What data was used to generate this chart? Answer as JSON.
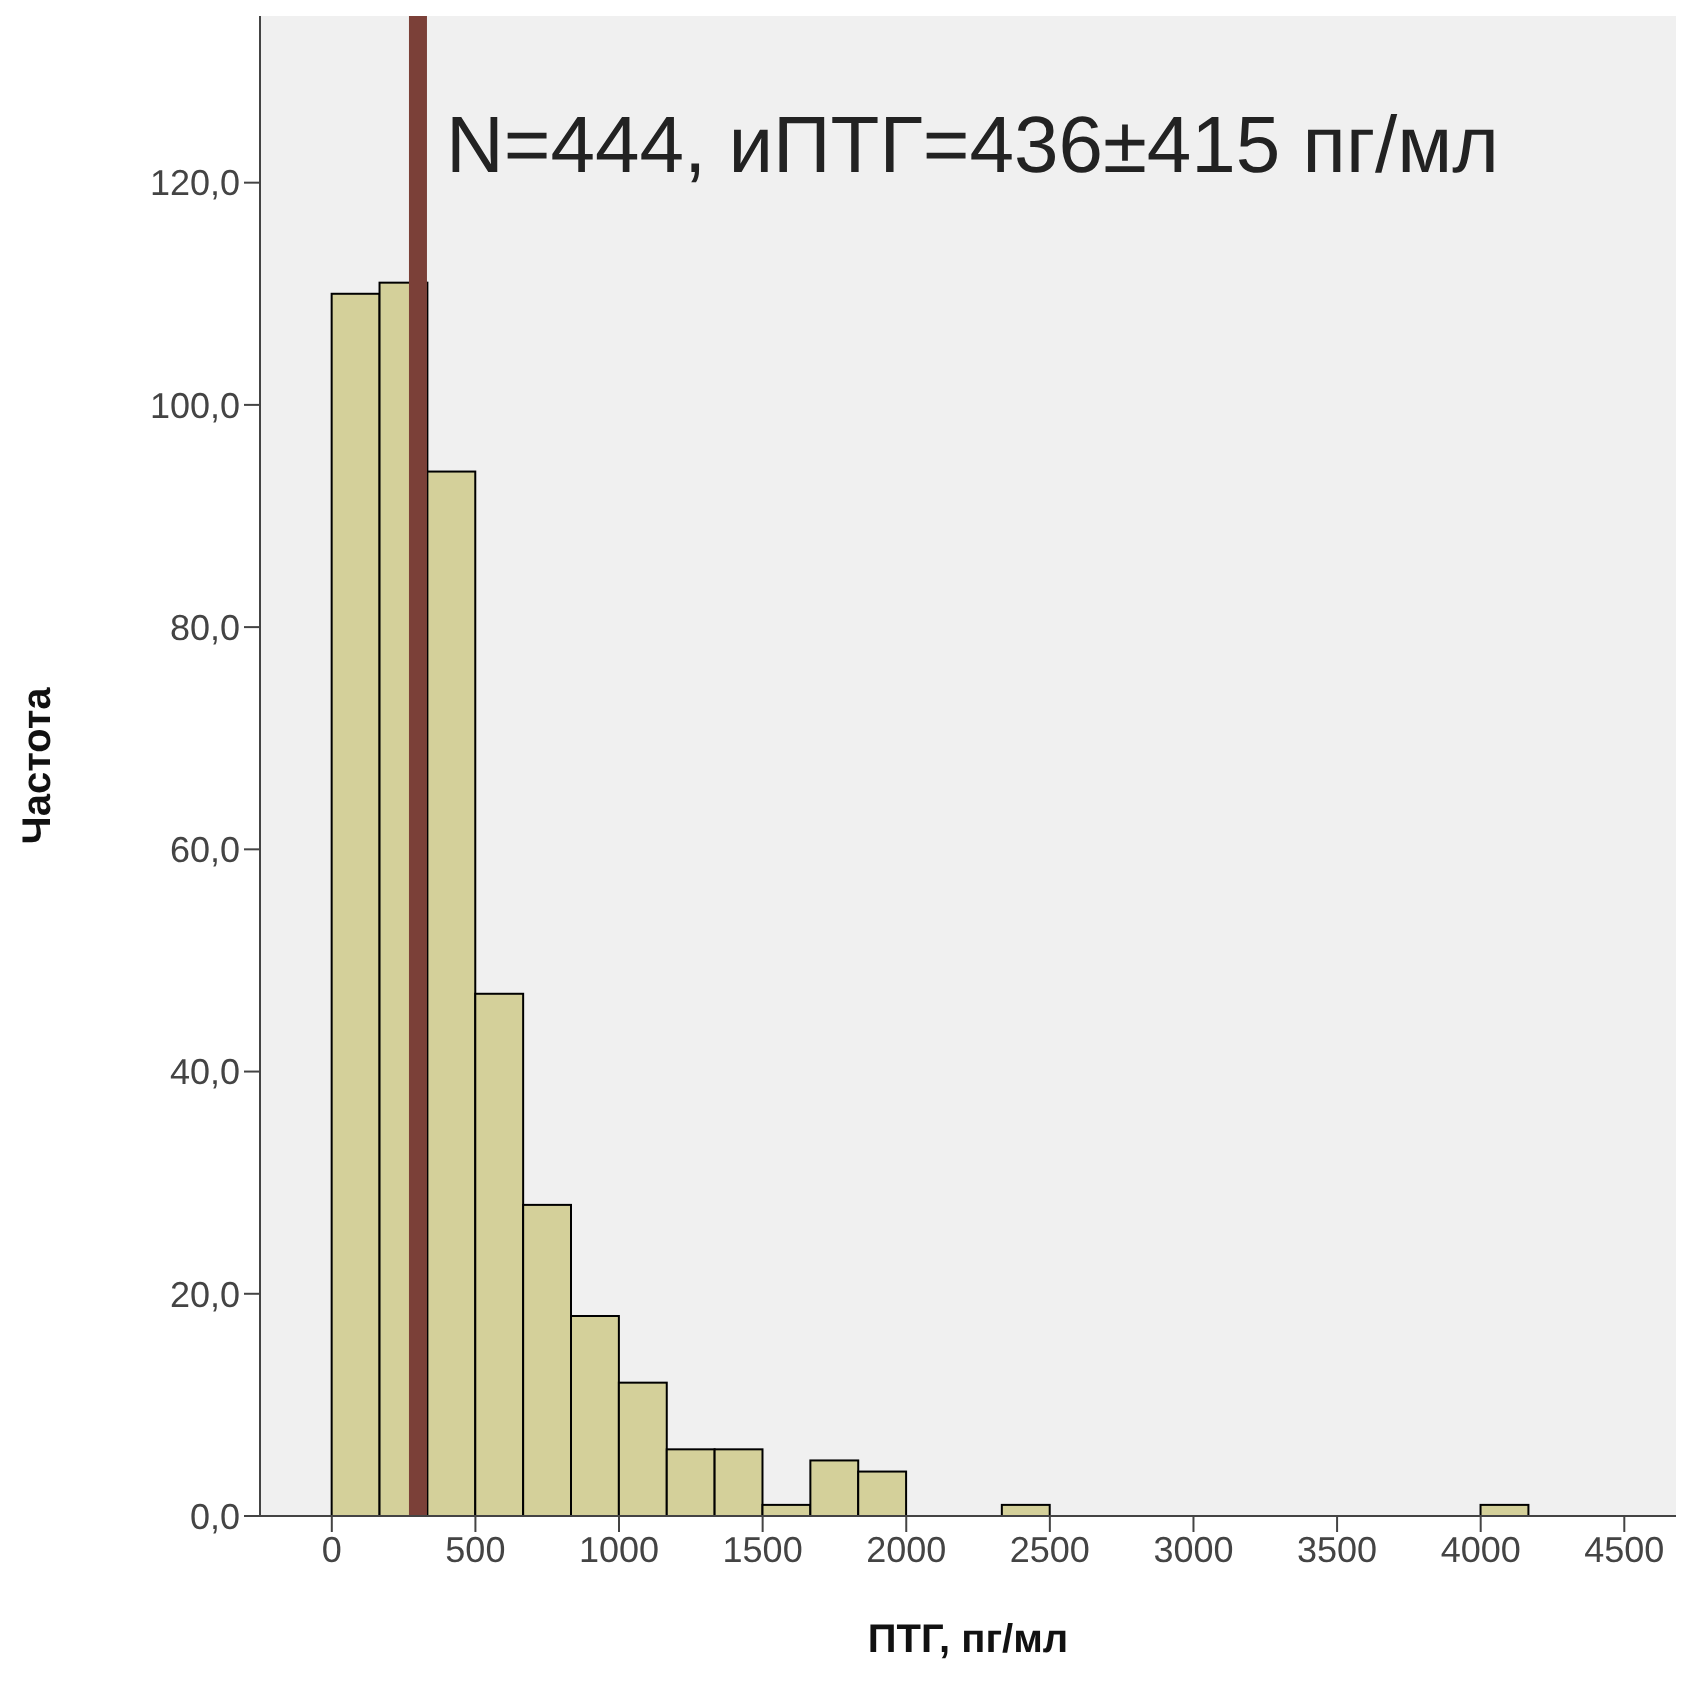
{
  "chart_data": {
    "type": "histogram",
    "title": "N=444, иПТГ=436±415 пг/мл",
    "xlabel": "ПТГ, пг/мл",
    "ylabel": "Частота",
    "bins": [
      0,
      166.7,
      333.3,
      500,
      666.7,
      833.3,
      1000,
      1166.7,
      1333.3,
      1500,
      1666.7,
      1833.3,
      2000,
      2166.7,
      2333.3,
      2500,
      2666.7,
      2833.3,
      3000,
      3166.7,
      3333.3,
      3500,
      3666.7,
      3833.3,
      4000,
      4166.7
    ],
    "values": [
      110,
      111,
      94,
      47,
      28,
      18,
      12,
      6,
      6,
      1,
      5,
      4,
      0,
      0,
      1,
      0,
      0,
      0,
      0,
      0,
      0,
      0,
      0,
      0,
      1
    ],
    "color": "#d4d09a",
    "xlim": [
      -250,
      4680
    ],
    "xticks": [
      0,
      500,
      1000,
      1500,
      2000,
      2500,
      3000,
      3500,
      4000,
      4500
    ],
    "ylim": [
      0,
      135
    ],
    "yticks": [
      {
        "value": 0,
        "label": "0,0"
      },
      {
        "value": 20,
        "label": "20,0"
      },
      {
        "value": 40,
        "label": "40,0"
      },
      {
        "value": 60,
        "label": "60,0"
      },
      {
        "value": 80,
        "label": "80,0"
      },
      {
        "value": 100,
        "label": "100,0"
      },
      {
        "value": 120,
        "label": "120,0"
      }
    ],
    "ref_lines": [
      {
        "axis": "x",
        "value": 300,
        "color": "#7b4038"
      }
    ],
    "grid": false,
    "legend": false
  }
}
